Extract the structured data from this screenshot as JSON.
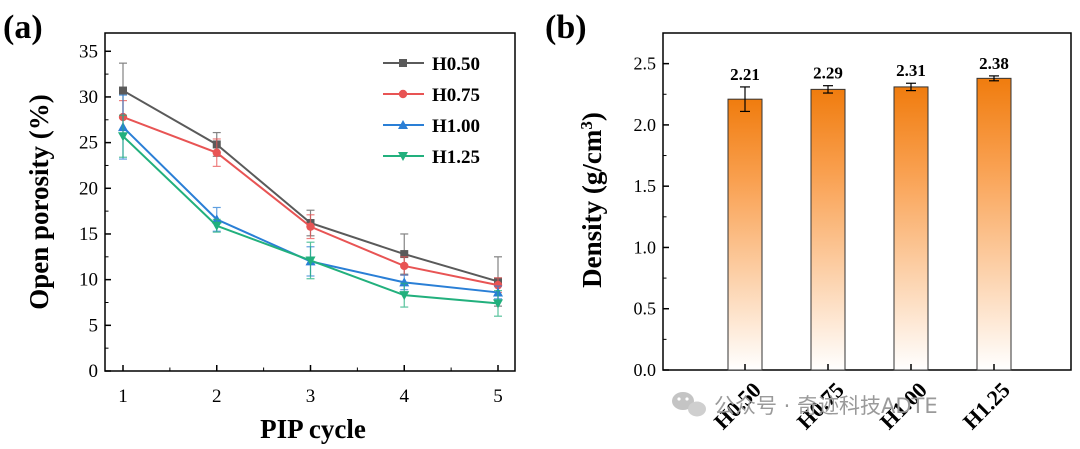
{
  "watermark": {
    "text": "公众号 · 奇迹科技ADTE",
    "icon": "wechat-icon"
  },
  "chart_data": [
    {
      "panel": "(a)",
      "type": "line",
      "xlabel": "PIP cycle",
      "ylabel": "Open porosity (%)",
      "x": [
        1,
        2,
        3,
        4,
        5
      ],
      "xlim": [
        1,
        5
      ],
      "ylim": [
        0,
        37
      ],
      "xticks": [
        "1",
        "2",
        "3",
        "4",
        "5"
      ],
      "yticks": [
        "0",
        "5",
        "10",
        "15",
        "20",
        "25",
        "30",
        "35"
      ],
      "grid": false,
      "legend_position": "top-right",
      "series": [
        {
          "name": "H0.50",
          "color": "#5a5a5a",
          "marker": "square",
          "values": [
            30.7,
            24.8,
            16.2,
            12.8,
            9.8
          ],
          "errors": [
            3.0,
            1.3,
            1.4,
            2.2,
            2.7
          ]
        },
        {
          "name": "H0.75",
          "color": "#e85454",
          "marker": "circle",
          "values": [
            27.8,
            23.9,
            15.8,
            11.5,
            9.4
          ],
          "errors": [
            1.8,
            1.5,
            1.3,
            1.0,
            0.8
          ]
        },
        {
          "name": "H1.00",
          "color": "#2a7fd6",
          "marker": "triangle-up",
          "values": [
            26.7,
            16.6,
            12.0,
            9.7,
            8.6
          ],
          "errors": [
            3.5,
            1.3,
            1.6,
            0.8,
            0.7
          ]
        },
        {
          "name": "H1.25",
          "color": "#22b07d",
          "marker": "triangle-down",
          "values": [
            25.7,
            15.9,
            12.1,
            8.3,
            7.4
          ],
          "errors": [
            2.3,
            0.7,
            2.0,
            1.3,
            1.4
          ]
        }
      ]
    },
    {
      "panel": "(b)",
      "type": "bar",
      "ylabel": "Density (g/cm",
      "ylabel_sup": "3",
      "ylabel_close": ")",
      "categories": [
        "H0.50",
        "H0.75",
        "H1.00",
        "H1.25"
      ],
      "values": [
        2.21,
        2.29,
        2.31,
        2.38
      ],
      "errors": [
        0.1,
        0.03,
        0.03,
        0.02
      ],
      "value_labels": [
        "2.21",
        "2.29",
        "2.31",
        "2.38"
      ],
      "ylim": [
        0,
        2.75
      ],
      "yticks": [
        "0.0",
        "0.5",
        "1.0",
        "1.5",
        "2.0",
        "2.5"
      ],
      "bar_gradient": [
        "#f07c0e",
        "#ffffff"
      ],
      "grid": false
    }
  ]
}
